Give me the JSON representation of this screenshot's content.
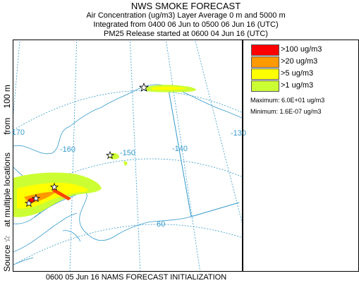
{
  "title": "NWS SMOKE FORECAST",
  "subtitle_lines": [
    "Air Concentration (ug/m3) Layer Average    0 m and  5000 m",
    "Integrated from 0400 06 Jun to 0500 06 Jun 16 (UTC)",
    "PM25 Release started at 0600 04 Jun 16 (UTC)"
  ],
  "side_label": {
    "source_text": "Source",
    "star_glyph": "☆",
    "at_text": "at multiple locations",
    "from_text": "from",
    "height_text": "100 m"
  },
  "legend": {
    "items": [
      {
        "label": ">100 ug/m3",
        "color": "#ff0000"
      },
      {
        "label": ">20 ug/m3",
        "color": "#ff9900"
      },
      {
        "label": ">5 ug/m3",
        "color": "#ffff00"
      },
      {
        "label": ">1 ug/m3",
        "color": "#ccff33"
      }
    ],
    "maximum": "Maximum: 6.0E+01 ug/m3",
    "minimum": "Minimum: 1.6E-07 ug/m3"
  },
  "map": {
    "longitude_labels": [
      "-170",
      "-160",
      "-150",
      "-140",
      "-130"
    ],
    "latitude_labels": [
      "60"
    ],
    "graticule_color": "#3399cc",
    "land_outline_color": "#3399cc",
    "border_color": "#3399cc",
    "source_marker": "star-icon"
  },
  "footer": "0600 05 Jun 16 NAMS FORECAST INITIALIZATION"
}
